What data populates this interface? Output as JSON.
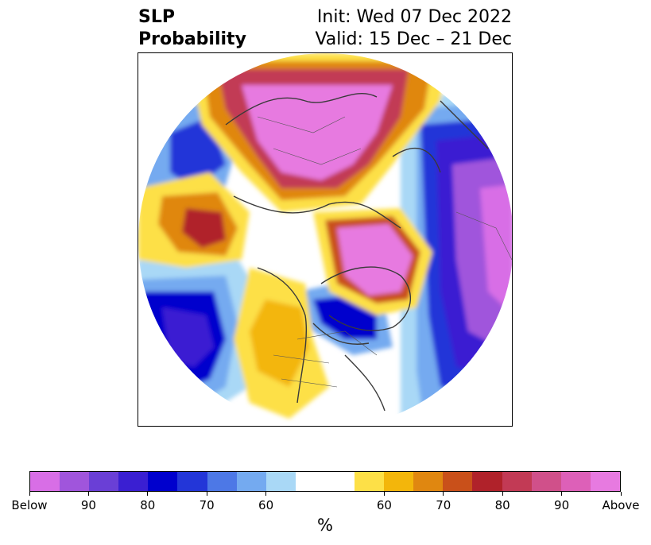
{
  "title": {
    "left_line1": "SLP",
    "left_line2": "Probability",
    "right_line1": "Init: Wed 07 Dec 2022",
    "right_line2": "Valid: 15 Dec – 21 Dec"
  },
  "colorbar": {
    "label": "%",
    "colors": [
      "#d86ee6",
      "#a055dc",
      "#6a3fd6",
      "#3a1fd2",
      "#0000cd",
      "#2336d8",
      "#4d78e6",
      "#74aaf0",
      "#a9d8f6",
      "#ffffff",
      "#ffffff",
      "#fde047",
      "#f3b60b",
      "#e08710",
      "#c9501a",
      "#b0222a",
      "#c23a55",
      "#d0508a",
      "#dd60b8",
      "#e77ae0"
    ],
    "ticks": [
      {
        "label": "Below",
        "index": 0
      },
      {
        "label": "90",
        "index": 2
      },
      {
        "label": "80",
        "index": 4
      },
      {
        "label": "70",
        "index": 6
      },
      {
        "label": "60",
        "index": 8
      },
      {
        "label": "60",
        "index": 12
      },
      {
        "label": "70",
        "index": 14
      },
      {
        "label": "80",
        "index": 16
      },
      {
        "label": "90",
        "index": 18
      },
      {
        "label": "Above",
        "index": 20
      }
    ]
  },
  "map": {
    "projection": "north-polar-stereographic",
    "below_colors": {
      "deep": "#0000cd",
      "strong": "#3a1fd2",
      "mid": "#4d78e6",
      "light": "#74aaf0",
      "faint": "#a9d8f6",
      "extreme": "#a055dc",
      "max": "#d86ee6"
    },
    "above_colors": {
      "faint": "#fde047",
      "light": "#f3b60b",
      "mid": "#e08710",
      "strong": "#c9501a",
      "deep": "#b0222a",
      "extreme": "#c23a55",
      "max": "#e77ae0"
    }
  }
}
